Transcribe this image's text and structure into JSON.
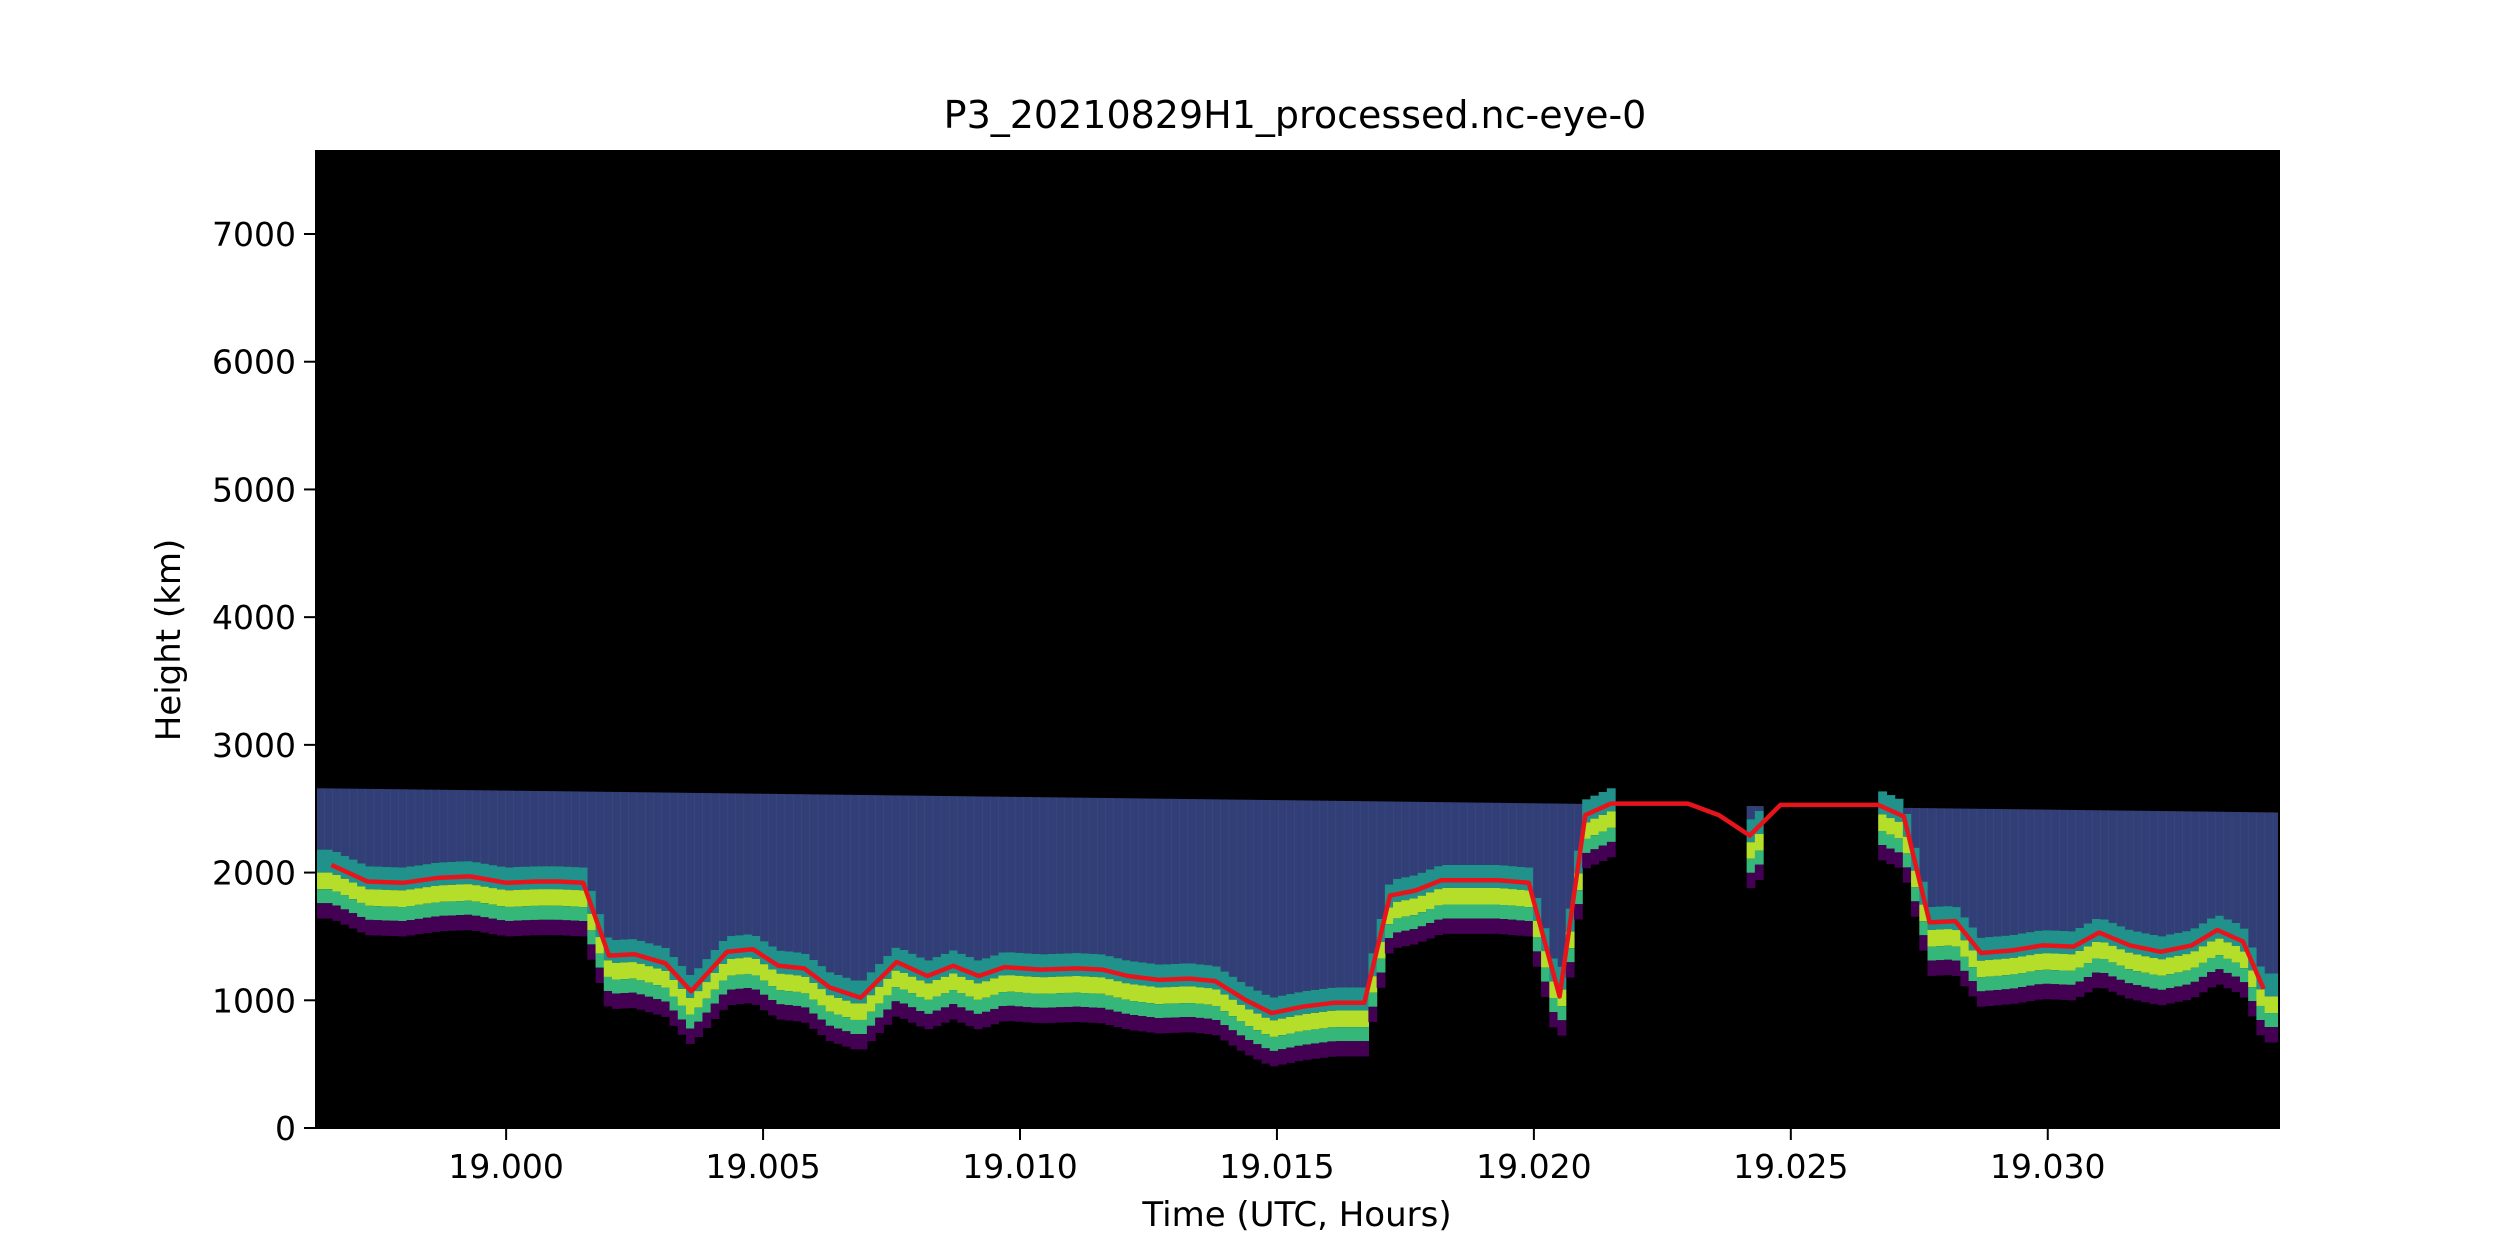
{
  "chart_data": {
    "type": "heatmap",
    "title": "P3_20210829H1_processed.nc-eye-0",
    "xlabel": "Time (UTC, Hours)",
    "ylabel": "Height (km)",
    "xlim": [
      18.9963,
      19.0345
    ],
    "ylim": [
      0,
      7650
    ],
    "x_ticks": [
      19.0,
      19.005,
      19.01,
      19.015,
      19.02,
      19.025,
      19.03
    ],
    "x_tick_labels": [
      "19.000",
      "19.005",
      "19.010",
      "19.015",
      "19.020",
      "19.025",
      "19.030"
    ],
    "y_ticks": [
      0,
      1000,
      2000,
      3000,
      4000,
      5000,
      6000,
      7000
    ],
    "y_tick_labels": [
      "0",
      "1000",
      "2000",
      "3000",
      "4000",
      "5000",
      "6000",
      "7000"
    ],
    "background_color": "#000000",
    "colormap": "viridis",
    "cloud_top_line": {
      "color": "#e8141c",
      "x": [
        18.9966,
        18.9973,
        18.998,
        18.9987,
        18.9993,
        19.0,
        19.0006,
        19.001,
        19.0015,
        19.002,
        19.0025,
        19.0031,
        19.0036,
        19.0043,
        19.0048,
        19.0053,
        19.0058,
        19.0063,
        19.0069,
        19.0076,
        19.0082,
        19.0087,
        19.0092,
        19.0097,
        19.0104,
        19.0111,
        19.0116,
        19.0121,
        19.0127,
        19.0133,
        19.0138,
        19.0144,
        19.0149,
        19.0155,
        19.0161,
        19.0167,
        19.0172,
        19.0177,
        19.0182,
        19.0188,
        19.0193,
        19.0199,
        19.0205,
        19.021,
        19.0215,
        19.022,
        19.0224,
        19.023,
        19.0236,
        19.0242,
        19.0248,
        19.0255,
        19.0262,
        19.0267,
        19.0272,
        19.0277,
        19.0282,
        19.0287,
        19.0293,
        19.0299,
        19.0305,
        19.031,
        19.0316,
        19.0322,
        19.0328,
        19.0333,
        19.0338,
        19.0342
      ],
      "y": [
        2060,
        1930,
        1920,
        1960,
        1970,
        1920,
        1930,
        1930,
        1920,
        1350,
        1360,
        1290,
        1070,
        1380,
        1400,
        1270,
        1250,
        1100,
        1020,
        1300,
        1190,
        1270,
        1190,
        1260,
        1240,
        1250,
        1240,
        1190,
        1160,
        1170,
        1150,
        1000,
        900,
        950,
        980,
        980,
        1820,
        1860,
        1940,
        1940,
        1940,
        1920,
        1030,
        2450,
        2540,
        2540,
        2540,
        2540,
        2450,
        2290,
        2530,
        2530,
        2530,
        2530,
        2440,
        1610,
        1620,
        1370,
        1390,
        1430,
        1420,
        1530,
        1430,
        1380,
        1430,
        1550,
        1460,
        1090
      ]
    }
  }
}
